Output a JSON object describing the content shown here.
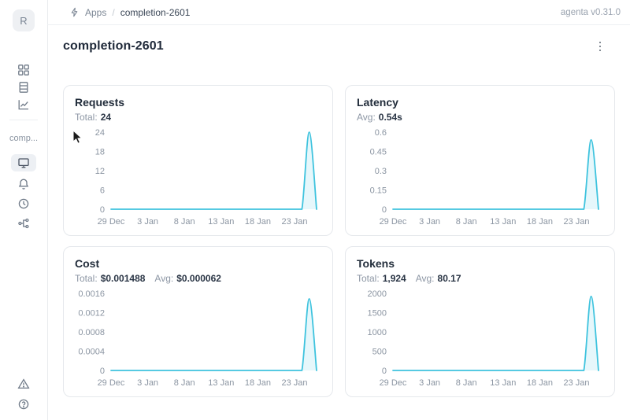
{
  "header": {
    "breadcrumb": {
      "app_section": "Apps",
      "separator": "/",
      "current": "completion-2601"
    },
    "version": "agenta v0.31.0"
  },
  "sidebar": {
    "logo_letter": "R",
    "collapsed_app_label": "comp..."
  },
  "page": {
    "title": "completion-2601"
  },
  "icons": {
    "breadcrumb": "lightning-icon",
    "sidebar_top": [
      "apps-grid-icon",
      "table-icon",
      "chart-icon"
    ],
    "sidebar_app": [
      "monitor-icon",
      "bell-icon",
      "history-icon",
      "trace-tree-icon"
    ],
    "sidebar_bottom": [
      "alert-triangle-icon",
      "help-icon"
    ],
    "title_menu": "kebab-menu-icon"
  },
  "colors": {
    "line": "#3ec3de",
    "line_fill": "rgba(62,195,222,0.13)",
    "tick_text": "#8b95a2"
  },
  "chart_data": [
    {
      "type": "area",
      "title": "Requests",
      "stats": [
        {
          "label": "Total:",
          "value": "24"
        }
      ],
      "x": [
        "29 Dec",
        "30 Dec",
        "31 Dec",
        "1 Jan",
        "2 Jan",
        "3 Jan",
        "4 Jan",
        "5 Jan",
        "6 Jan",
        "7 Jan",
        "8 Jan",
        "9 Jan",
        "10 Jan",
        "11 Jan",
        "12 Jan",
        "13 Jan",
        "14 Jan",
        "15 Jan",
        "16 Jan",
        "17 Jan",
        "18 Jan",
        "19 Jan",
        "20 Jan",
        "21 Jan",
        "22 Jan",
        "23 Jan",
        "24 Jan",
        "25 Jan",
        "26 Jan"
      ],
      "values": [
        0,
        0,
        0,
        0,
        0,
        0,
        0,
        0,
        0,
        0,
        0,
        0,
        0,
        0,
        0,
        0,
        0,
        0,
        0,
        0,
        0,
        0,
        0,
        0,
        0,
        0,
        0,
        24,
        0
      ],
      "y_ticks": [
        0,
        6,
        12,
        18,
        24
      ],
      "ylim": [
        0,
        24
      ],
      "x_tick_labels": [
        "29 Dec",
        "3 Jan",
        "8 Jan",
        "13 Jan",
        "18 Jan",
        "23 Jan"
      ],
      "x_tick_indices": [
        0,
        5,
        10,
        15,
        20,
        25
      ],
      "grid": false,
      "legend": false
    },
    {
      "type": "area",
      "title": "Latency",
      "stats": [
        {
          "label": "Avg:",
          "value": "0.54s"
        }
      ],
      "x": [
        "29 Dec",
        "30 Dec",
        "31 Dec",
        "1 Jan",
        "2 Jan",
        "3 Jan",
        "4 Jan",
        "5 Jan",
        "6 Jan",
        "7 Jan",
        "8 Jan",
        "9 Jan",
        "10 Jan",
        "11 Jan",
        "12 Jan",
        "13 Jan",
        "14 Jan",
        "15 Jan",
        "16 Jan",
        "17 Jan",
        "18 Jan",
        "19 Jan",
        "20 Jan",
        "21 Jan",
        "22 Jan",
        "23 Jan",
        "24 Jan",
        "25 Jan",
        "26 Jan"
      ],
      "values": [
        0,
        0,
        0,
        0,
        0,
        0,
        0,
        0,
        0,
        0,
        0,
        0,
        0,
        0,
        0,
        0,
        0,
        0,
        0,
        0,
        0,
        0,
        0,
        0,
        0,
        0,
        0,
        0.54,
        0
      ],
      "y_ticks": [
        0,
        0.15,
        0.3,
        0.45,
        0.6
      ],
      "ylim": [
        0,
        0.6
      ],
      "x_tick_labels": [
        "29 Dec",
        "3 Jan",
        "8 Jan",
        "13 Jan",
        "18 Jan",
        "23 Jan"
      ],
      "x_tick_indices": [
        0,
        5,
        10,
        15,
        20,
        25
      ],
      "grid": false,
      "legend": false
    },
    {
      "type": "area",
      "title": "Cost",
      "stats": [
        {
          "label": "Total:",
          "value": "$0.001488"
        },
        {
          "label": "Avg:",
          "value": "$0.000062"
        }
      ],
      "x": [
        "29 Dec",
        "30 Dec",
        "31 Dec",
        "1 Jan",
        "2 Jan",
        "3 Jan",
        "4 Jan",
        "5 Jan",
        "6 Jan",
        "7 Jan",
        "8 Jan",
        "9 Jan",
        "10 Jan",
        "11 Jan",
        "12 Jan",
        "13 Jan",
        "14 Jan",
        "15 Jan",
        "16 Jan",
        "17 Jan",
        "18 Jan",
        "19 Jan",
        "20 Jan",
        "21 Jan",
        "22 Jan",
        "23 Jan",
        "24 Jan",
        "25 Jan",
        "26 Jan"
      ],
      "values": [
        0,
        0,
        0,
        0,
        0,
        0,
        0,
        0,
        0,
        0,
        0,
        0,
        0,
        0,
        0,
        0,
        0,
        0,
        0,
        0,
        0,
        0,
        0,
        0,
        0,
        0,
        0,
        0.001488,
        0
      ],
      "y_ticks": [
        0,
        0.0004,
        0.0008,
        0.0012,
        0.0016
      ],
      "ylim": [
        0,
        0.0016
      ],
      "x_tick_labels": [
        "29 Dec",
        "3 Jan",
        "8 Jan",
        "13 Jan",
        "18 Jan",
        "23 Jan"
      ],
      "x_tick_indices": [
        0,
        5,
        10,
        15,
        20,
        25
      ],
      "grid": false,
      "legend": false
    },
    {
      "type": "area",
      "title": "Tokens",
      "stats": [
        {
          "label": "Total:",
          "value": "1,924"
        },
        {
          "label": "Avg:",
          "value": "80.17"
        }
      ],
      "x": [
        "29 Dec",
        "30 Dec",
        "31 Dec",
        "1 Jan",
        "2 Jan",
        "3 Jan",
        "4 Jan",
        "5 Jan",
        "6 Jan",
        "7 Jan",
        "8 Jan",
        "9 Jan",
        "10 Jan",
        "11 Jan",
        "12 Jan",
        "13 Jan",
        "14 Jan",
        "15 Jan",
        "16 Jan",
        "17 Jan",
        "18 Jan",
        "19 Jan",
        "20 Jan",
        "21 Jan",
        "22 Jan",
        "23 Jan",
        "24 Jan",
        "25 Jan",
        "26 Jan"
      ],
      "values": [
        0,
        0,
        0,
        0,
        0,
        0,
        0,
        0,
        0,
        0,
        0,
        0,
        0,
        0,
        0,
        0,
        0,
        0,
        0,
        0,
        0,
        0,
        0,
        0,
        0,
        0,
        0,
        1924,
        0
      ],
      "y_ticks": [
        0,
        500,
        1000,
        1500,
        2000
      ],
      "ylim": [
        0,
        2000
      ],
      "x_tick_labels": [
        "29 Dec",
        "3 Jan",
        "8 Jan",
        "13 Jan",
        "18 Jan",
        "23 Jan"
      ],
      "x_tick_indices": [
        0,
        5,
        10,
        15,
        20,
        25
      ],
      "grid": false,
      "legend": false
    }
  ]
}
